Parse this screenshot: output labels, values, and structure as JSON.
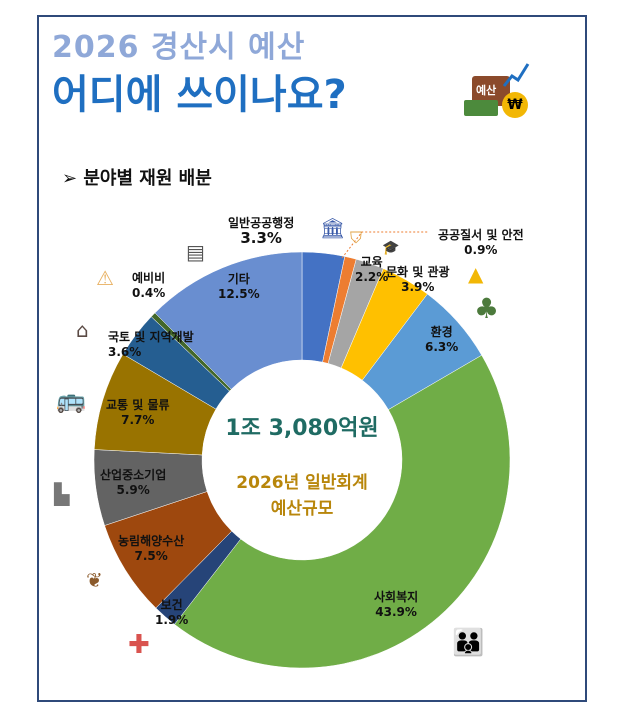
{
  "header": {
    "title_line1": "2026 경산시 예산",
    "title_line2": "어디에 쓰이나요?",
    "badge": "예산",
    "section": "➢  분야별 재원 배분"
  },
  "center": {
    "total": "1조 3,080억원",
    "caption_line1": "2026년 일반회계",
    "caption_line2": "예산규모"
  },
  "chart_data": {
    "type": "pie",
    "donut": true,
    "unit": "%",
    "categories": [
      "일반공공행정",
      "공공질서 및 안전",
      "교육",
      "문화 및 관광",
      "환경",
      "사회복지",
      "보건",
      "농림해양수산",
      "산업중소기업",
      "교통 및 물류",
      "국토 및 지역개발",
      "예비비",
      "기타"
    ],
    "values": [
      3.3,
      0.9,
      2.2,
      3.9,
      6.3,
      43.9,
      1.9,
      7.5,
      5.9,
      7.7,
      3.6,
      0.4,
      12.5
    ],
    "labels": [
      "3.3%",
      "0.9%",
      "2.2%",
      "3.9%",
      "6.3%",
      "43.9%",
      "1.9%",
      "7.5%",
      "5.9%",
      "7.7%",
      "3.6%",
      "0.4%",
      "12.5%"
    ],
    "colors": [
      "#4472c4",
      "#ed7d31",
      "#a5a5a5",
      "#ffc000",
      "#5b9bd5",
      "#70ad47",
      "#264478",
      "#9e480e",
      "#636363",
      "#997300",
      "#255e91",
      "#43682b",
      "#698ed0"
    ],
    "icons": [
      "bank-icon",
      "shield-icon",
      "graduation-cap-icon",
      "pagoda-icon",
      "tree-icon",
      "family-icon",
      "medical-cross-icon",
      "sprout-icon",
      "factory-icon",
      "bus-icon",
      "house-icon",
      "warning-icon",
      "document-icon"
    ]
  }
}
